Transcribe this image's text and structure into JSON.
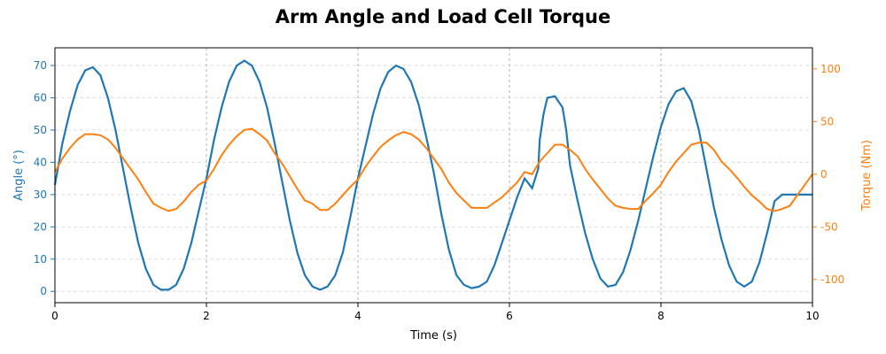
{
  "chart_data": {
    "type": "line",
    "title": "Arm Angle and Load Cell Torque",
    "xlabel": "Time (s)",
    "ylabel_left": "Angle (°)",
    "ylabel_right": "Torque (Nm)",
    "xlim": [
      0,
      10
    ],
    "ylim_left": [
      -3.5,
      75.5
    ],
    "ylim_right": [
      -122,
      120
    ],
    "xticks": [
      0,
      2,
      4,
      6,
      8,
      10
    ],
    "yticks_left": [
      0,
      10,
      20,
      30,
      40,
      50,
      60,
      70
    ],
    "yticks_right": [
      -100,
      -50,
      0,
      50,
      100
    ],
    "vertical_lines_x": [
      2,
      4,
      6,
      8
    ],
    "grid": "horizontal dashed",
    "colors": {
      "angle": "#1f77b4",
      "torque": "#ff7f0e",
      "grid": "#dddddd",
      "vline": "#b0b0b0"
    },
    "series": [
      {
        "axis": "left",
        "x": [
          0,
          0.1,
          0.2,
          0.3,
          0.4,
          0.5,
          0.6,
          0.7,
          0.8,
          0.9,
          1.0,
          1.1,
          1.2,
          1.3,
          1.4,
          1.5,
          1.6,
          1.7,
          1.8,
          1.9,
          2.0,
          2.1,
          2.2,
          2.3,
          2.4,
          2.5,
          2.6,
          2.7,
          2.8,
          2.9,
          3.0,
          3.1,
          3.2,
          3.3,
          3.4,
          3.5,
          3.6,
          3.7,
          3.8,
          3.9,
          4.0,
          4.1,
          4.2,
          4.3,
          4.4,
          4.5,
          4.6,
          4.7,
          4.8,
          4.9,
          5.0,
          5.1,
          5.2,
          5.3,
          5.4,
          5.5,
          5.6,
          5.7,
          5.8,
          5.9,
          6.0,
          6.1,
          6.2,
          6.3,
          6.38,
          6.4,
          6.45,
          6.5,
          6.6,
          6.7,
          6.75,
          6.8,
          6.9,
          7.0,
          7.1,
          7.2,
          7.3,
          7.4,
          7.5,
          7.6,
          7.7,
          7.8,
          7.9,
          8.0,
          8.1,
          8.2,
          8.3,
          8.4,
          8.5,
          8.6,
          8.7,
          8.8,
          8.9,
          9.0,
          9.1,
          9.2,
          9.3,
          9.4,
          9.5,
          9.6,
          9.7,
          9.8,
          9.9,
          10.0
        ],
        "values": [
          33,
          46,
          56,
          64,
          68.5,
          69.5,
          67,
          60,
          50,
          38,
          26,
          15,
          7,
          2,
          0.5,
          0.5,
          2,
          7,
          15,
          25,
          35,
          47,
          57,
          65,
          70,
          71.5,
          70,
          65,
          57,
          46,
          34,
          22,
          12,
          5,
          1.5,
          0.5,
          1.5,
          5,
          12,
          23,
          35,
          45,
          55,
          63,
          68,
          70,
          69,
          65,
          58,
          48,
          37,
          24,
          13,
          5,
          2,
          1,
          1.5,
          3,
          8,
          15,
          22,
          29,
          35,
          32,
          38,
          47,
          55,
          60,
          60.5,
          57,
          50,
          39,
          28,
          18,
          10,
          4,
          1.5,
          2,
          6,
          13,
          22,
          32,
          42,
          51,
          58,
          62,
          63,
          59,
          50,
          38,
          26,
          16,
          8,
          3,
          1.5,
          3,
          9,
          18,
          28,
          30,
          30,
          30,
          30,
          30
        ]
      },
      {
        "axis": "right",
        "x": [
          0,
          0.1,
          0.2,
          0.3,
          0.4,
          0.5,
          0.6,
          0.7,
          0.8,
          0.9,
          1.0,
          1.1,
          1.2,
          1.3,
          1.4,
          1.5,
          1.6,
          1.7,
          1.8,
          1.9,
          2.0,
          2.1,
          2.2,
          2.3,
          2.4,
          2.5,
          2.6,
          2.7,
          2.8,
          2.9,
          3.0,
          3.1,
          3.2,
          3.3,
          3.4,
          3.5,
          3.6,
          3.7,
          3.8,
          3.9,
          4.0,
          4.1,
          4.2,
          4.3,
          4.4,
          4.5,
          4.6,
          4.7,
          4.8,
          4.9,
          5.0,
          5.1,
          5.2,
          5.3,
          5.4,
          5.5,
          5.6,
          5.7,
          5.8,
          5.9,
          6.0,
          6.1,
          6.2,
          6.3,
          6.4,
          6.5,
          6.6,
          6.7,
          6.8,
          6.9,
          7.0,
          7.1,
          7.2,
          7.3,
          7.4,
          7.5,
          7.6,
          7.7,
          7.8,
          7.9,
          8.0,
          8.1,
          8.2,
          8.3,
          8.4,
          8.5,
          8.6,
          8.7,
          8.8,
          8.9,
          9.0,
          9.1,
          9.2,
          9.3,
          9.4,
          9.5,
          9.6,
          9.7,
          9.8,
          9.9,
          10.0
        ],
        "values": [
          2,
          15,
          25,
          33,
          38,
          38,
          37,
          33,
          25,
          15,
          5,
          -5,
          -17,
          -28,
          -32,
          -35,
          -33,
          -26,
          -17,
          -10,
          -6,
          5,
          18,
          28,
          36,
          42,
          43,
          38,
          32,
          20,
          10,
          -2,
          -14,
          -25,
          -28,
          -34,
          -34,
          -28,
          -20,
          -12,
          -5,
          7,
          17,
          26,
          32,
          37,
          40,
          38,
          33,
          25,
          15,
          5,
          -8,
          -18,
          -25,
          -32,
          -32,
          -32,
          -27,
          -22,
          -15,
          -8,
          2,
          0,
          12,
          20,
          28,
          28,
          23,
          17,
          5,
          -5,
          -14,
          -23,
          -30,
          -32,
          -33,
          -33,
          -25,
          -18,
          -10,
          2,
          12,
          20,
          28,
          30,
          30,
          23,
          12,
          5,
          -3,
          -12,
          -20,
          -26,
          -33,
          -35,
          -33,
          -30,
          -20,
          -10,
          0
        ]
      }
    ]
  }
}
